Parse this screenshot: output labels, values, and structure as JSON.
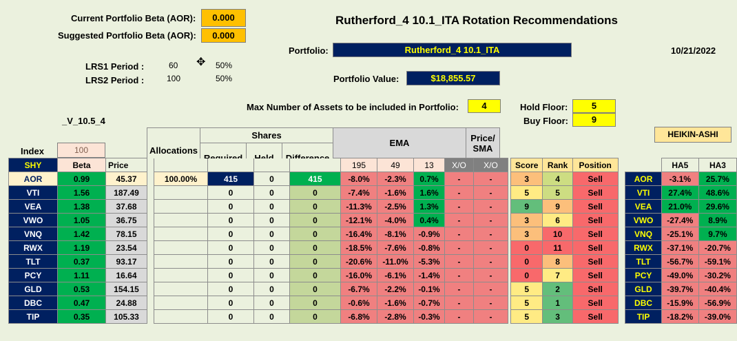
{
  "header": {
    "current_beta_label": "Current Portfolio Beta (AOR):",
    "current_beta_value": "0.000",
    "suggested_beta_label": "Suggested Portfolio Beta (AOR):",
    "suggested_beta_value": "0.000",
    "title": "Rutherford_4 10.1_ITA Rotation Recommendations",
    "portfolio_label": "Portfolio:",
    "portfolio_value": "Rutherford_4 10.1_ITA",
    "date": "10/21/2022",
    "lrs1_label": "LRS1 Period :",
    "lrs1_value": "60",
    "lrs1_pct": "50%",
    "lrs2_label": "LRS2 Period :",
    "lrs2_value": "100",
    "lrs2_pct": "50%",
    "portfolio_value_label": "Portfolio Value:",
    "portfolio_value_amount": "$18,855.57",
    "max_assets_label": "Max Number of Assets to be included in Portfolio:",
    "max_assets_value": "4",
    "hold_floor_label": "Hold Floor:",
    "hold_floor_value": "5",
    "buy_floor_label": "Buy Floor:",
    "buy_floor_value": "9",
    "version": "_V_10.5_4",
    "heikin_ashi": "HEIKIN-ASHI"
  },
  "columns": {
    "index": "Index",
    "index_value": "100",
    "shy": "SHY",
    "beta": "Beta",
    "price": "Price",
    "allocations": "Allocations",
    "shares": "Shares",
    "required": "Required",
    "held": "Held",
    "difference": "Difference",
    "ema": "EMA",
    "ema195": "195",
    "ema49": "49",
    "ema13": "13",
    "xo": "X/O",
    "price_sma_1": "Price/",
    "price_sma_2": "SMA",
    "xo2": "X/O",
    "score": "Score",
    "rank": "Rank",
    "position": "Position",
    "ha5": "HA5",
    "ha3": "HA3"
  },
  "rows": [
    {
      "ticker": "AOR",
      "beta": "0.99",
      "price": "45.37",
      "alloc": "100.00%",
      "req": "415",
      "held": "0",
      "diff": "415",
      "e195": "-8.0%",
      "e49": "-2.3%",
      "e13": "0.7%",
      "xo": "-",
      "psma": "-",
      "score": "3",
      "rank": "4",
      "position": "Sell",
      "ha5": "-3.1%",
      "ha3": "25.7%"
    },
    {
      "ticker": "VTI",
      "beta": "1.56",
      "price": "187.49",
      "alloc": "",
      "req": "0",
      "held": "0",
      "diff": "0",
      "e195": "-7.4%",
      "e49": "-1.6%",
      "e13": "1.6%",
      "xo": "-",
      "psma": "-",
      "score": "5",
      "rank": "5",
      "position": "Sell",
      "ha5": "27.4%",
      "ha3": "48.6%"
    },
    {
      "ticker": "VEA",
      "beta": "1.38",
      "price": "37.68",
      "alloc": "",
      "req": "0",
      "held": "0",
      "diff": "0",
      "e195": "-11.3%",
      "e49": "-2.5%",
      "e13": "1.3%",
      "xo": "-",
      "psma": "-",
      "score": "9",
      "rank": "9",
      "position": "Sell",
      "ha5": "21.0%",
      "ha3": "29.6%"
    },
    {
      "ticker": "VWO",
      "beta": "1.05",
      "price": "36.75",
      "alloc": "",
      "req": "0",
      "held": "0",
      "diff": "0",
      "e195": "-12.1%",
      "e49": "-4.0%",
      "e13": "0.4%",
      "xo": "-",
      "psma": "-",
      "score": "3",
      "rank": "6",
      "position": "Sell",
      "ha5": "-27.4%",
      "ha3": "8.9%"
    },
    {
      "ticker": "VNQ",
      "beta": "1.42",
      "price": "78.15",
      "alloc": "",
      "req": "0",
      "held": "0",
      "diff": "0",
      "e195": "-16.4%",
      "e49": "-8.1%",
      "e13": "-0.9%",
      "xo": "-",
      "psma": "-",
      "score": "3",
      "rank": "10",
      "position": "Sell",
      "ha5": "-25.1%",
      "ha3": "9.7%"
    },
    {
      "ticker": "RWX",
      "beta": "1.19",
      "price": "23.54",
      "alloc": "",
      "req": "0",
      "held": "0",
      "diff": "0",
      "e195": "-18.5%",
      "e49": "-7.6%",
      "e13": "-0.8%",
      "xo": "-",
      "psma": "-",
      "score": "0",
      "rank": "11",
      "position": "Sell",
      "ha5": "-37.1%",
      "ha3": "-20.7%"
    },
    {
      "ticker": "TLT",
      "beta": "0.37",
      "price": "93.17",
      "alloc": "",
      "req": "0",
      "held": "0",
      "diff": "0",
      "e195": "-20.6%",
      "e49": "-11.0%",
      "e13": "-5.3%",
      "xo": "-",
      "psma": "-",
      "score": "0",
      "rank": "8",
      "position": "Sell",
      "ha5": "-56.7%",
      "ha3": "-59.1%"
    },
    {
      "ticker": "PCY",
      "beta": "1.11",
      "price": "16.64",
      "alloc": "",
      "req": "0",
      "held": "0",
      "diff": "0",
      "e195": "-16.0%",
      "e49": "-6.1%",
      "e13": "-1.4%",
      "xo": "-",
      "psma": "-",
      "score": "0",
      "rank": "7",
      "position": "Sell",
      "ha5": "-49.0%",
      "ha3": "-30.2%"
    },
    {
      "ticker": "GLD",
      "beta": "0.53",
      "price": "154.15",
      "alloc": "",
      "req": "0",
      "held": "0",
      "diff": "0",
      "e195": "-6.7%",
      "e49": "-2.2%",
      "e13": "-0.1%",
      "xo": "-",
      "psma": "-",
      "score": "5",
      "rank": "2",
      "position": "Sell",
      "ha5": "-39.7%",
      "ha3": "-40.4%"
    },
    {
      "ticker": "DBC",
      "beta": "0.47",
      "price": "24.88",
      "alloc": "",
      "req": "0",
      "held": "0",
      "diff": "0",
      "e195": "-0.6%",
      "e49": "-1.6%",
      "e13": "-0.7%",
      "xo": "-",
      "psma": "-",
      "score": "5",
      "rank": "1",
      "position": "Sell",
      "ha5": "-15.9%",
      "ha3": "-56.9%"
    },
    {
      "ticker": "TIP",
      "beta": "0.35",
      "price": "105.33",
      "alloc": "",
      "req": "0",
      "held": "0",
      "diff": "0",
      "e195": "-6.8%",
      "e49": "-2.8%",
      "e13": "-0.3%",
      "xo": "-",
      "psma": "-",
      "score": "5",
      "rank": "3",
      "position": "Sell",
      "ha5": "-18.2%",
      "ha3": "-39.0%"
    }
  ],
  "colors": {
    "background": "#ebf1de",
    "navy": "#002060",
    "green": "#00b050",
    "red": "#f08080",
    "yellow": "#ffff00",
    "orange": "#ffc000"
  }
}
